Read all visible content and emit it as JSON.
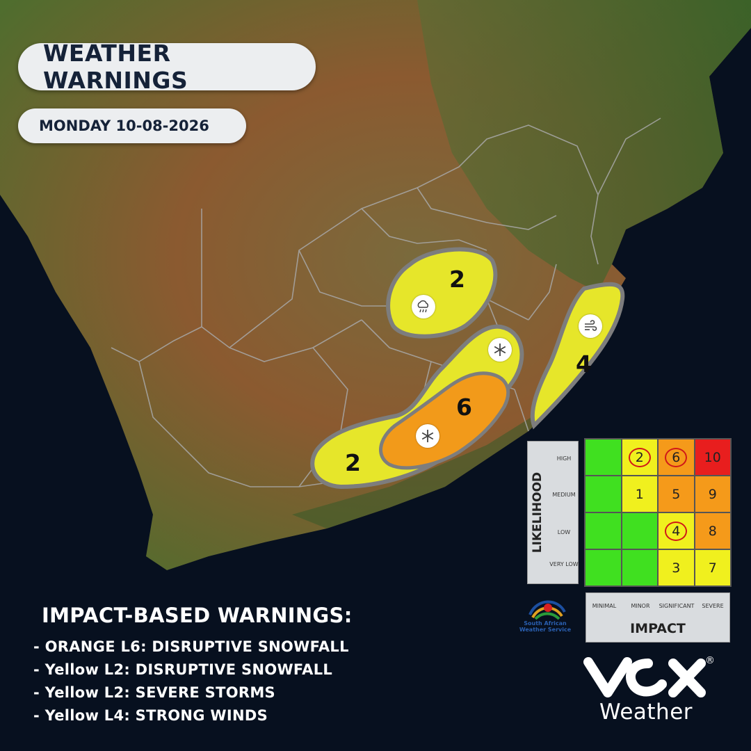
{
  "header": {
    "title": "WEATHER WARNINGS",
    "date": "MONDAY 10-08-2026"
  },
  "legend": {
    "title": "IMPACT-BASED WARNINGS:",
    "items": [
      "- ORANGE L6: DISRUPTIVE SNOWFALL",
      "- Yellow L2: DISRUPTIVE SNOWFALL",
      "- Yellow L2: SEVERE STORMS",
      "- Yellow L4: STRONG WINDS"
    ]
  },
  "map": {
    "zones": [
      {
        "name": "storms",
        "level": "2",
        "color": "#e6e62a",
        "icon": "rain-cloud-icon"
      },
      {
        "name": "snow-yellow-east",
        "level": "",
        "color": "#e6e62a",
        "icon": "snowflake-icon"
      },
      {
        "name": "snow-orange",
        "level": "6",
        "color": "#f29a1a",
        "icon": "snowflake-icon"
      },
      {
        "name": "snow-yellow-west",
        "level": "2",
        "color": "#e6e62a"
      },
      {
        "name": "wind-coast",
        "level": "4",
        "color": "#e6e62a",
        "icon": "wind-icon"
      }
    ],
    "colors": {
      "ocean": "#07101f",
      "land": "#6b6a3b",
      "border": "#a8a8a8"
    }
  },
  "matrix": {
    "likelihood_title": "LIKELIHOOD",
    "likelihood_levels": [
      "HIGH",
      "MEDIUM",
      "LOW",
      "VERY LOW"
    ],
    "impact_title": "IMPACT",
    "impact_levels": [
      "MINIMAL",
      "MINOR",
      "SIGNIFICANT",
      "SEVERE"
    ],
    "rows": [
      [
        {
          "v": "",
          "c": "#40e020"
        },
        {
          "v": "2",
          "c": "#f0f01e",
          "circled": true
        },
        {
          "v": "6",
          "c": "#f59a1a",
          "circled": true
        },
        {
          "v": "10",
          "c": "#e81e1e"
        }
      ],
      [
        {
          "v": "",
          "c": "#40e020"
        },
        {
          "v": "1",
          "c": "#f0f01e"
        },
        {
          "v": "5",
          "c": "#f59a1a"
        },
        {
          "v": "9",
          "c": "#f59a1a"
        }
      ],
      [
        {
          "v": "",
          "c": "#40e020"
        },
        {
          "v": "",
          "c": "#40e020"
        },
        {
          "v": "4",
          "c": "#f0f01e",
          "circled": true
        },
        {
          "v": "8",
          "c": "#f59a1a"
        }
      ],
      [
        {
          "v": "",
          "c": "#40e020"
        },
        {
          "v": "",
          "c": "#40e020"
        },
        {
          "v": "3",
          "c": "#f0f01e"
        },
        {
          "v": "7",
          "c": "#f0f01e"
        }
      ]
    ]
  },
  "branding": {
    "saws_line1": "South African",
    "saws_line2": "Weather Service",
    "vox_mark": "VOX",
    "vox_sub": "Weather",
    "reg_mark": "®"
  }
}
